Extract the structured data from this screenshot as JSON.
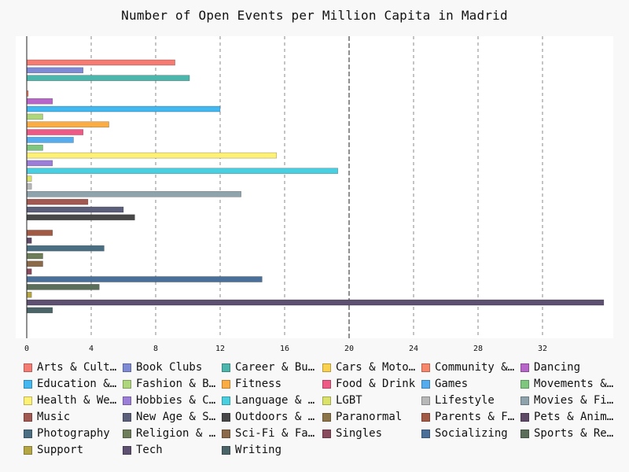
{
  "chart_data": {
    "type": "bar",
    "orientation": "horizontal",
    "title": "Number of Open Events per Million Capita in Madrid",
    "xlabel": "",
    "ylabel": "",
    "xlim": [
      0,
      36
    ],
    "x_ticks": [
      "0",
      "4",
      "8",
      "12",
      "16",
      "20",
      "24",
      "28",
      "32"
    ],
    "major_gridline_at": 20,
    "grid": "vertical dashed",
    "legend_position": "bottom",
    "series": [
      {
        "name": "Arts & Culture",
        "color": "#f57c73",
        "value": 9.2
      },
      {
        "name": "Book Clubs",
        "color": "#7f8ad4",
        "value": 3.5
      },
      {
        "name": "Career & Business",
        "color": "#4db6ac",
        "value": 10.1
      },
      {
        "name": "Cars & Motorcycles",
        "color": "#f9d14f",
        "value": 0
      },
      {
        "name": "Community & Environment",
        "color": "#f7866a",
        "value": 0.1
      },
      {
        "name": "Dancing",
        "color": "#b865c9",
        "value": 1.6
      },
      {
        "name": "Education & Learning",
        "color": "#43b7ef",
        "value": 12.0
      },
      {
        "name": "Fashion & Beauty",
        "color": "#aed67b",
        "value": 1.0
      },
      {
        "name": "Fitness",
        "color": "#fbad43",
        "value": 5.1
      },
      {
        "name": "Food & Drink",
        "color": "#ee5a85",
        "value": 3.5
      },
      {
        "name": "Games",
        "color": "#55acef",
        "value": 2.9
      },
      {
        "name": "Movements & Politics",
        "color": "#7fc67f",
        "value": 1.0
      },
      {
        "name": "Health & Wellbeing",
        "color": "#fff176",
        "value": 15.5
      },
      {
        "name": "Hobbies & Crafts",
        "color": "#9c7ed9",
        "value": 1.6
      },
      {
        "name": "Language & Ethnic Identity",
        "color": "#4acfe0",
        "value": 19.3
      },
      {
        "name": "LGBT",
        "color": "#dbe26a",
        "value": 0.3
      },
      {
        "name": "Lifestyle",
        "color": "#b8b8b8",
        "value": 0.3
      },
      {
        "name": "Movies & Film",
        "color": "#8fa3ad",
        "value": 13.3
      },
      {
        "name": "Music",
        "color": "#a25951",
        "value": 3.8
      },
      {
        "name": "New Age & Spirituality",
        "color": "#5c5f7a",
        "value": 6.0
      },
      {
        "name": "Outdoors & Adventure",
        "color": "#484848",
        "value": 6.7
      },
      {
        "name": "Paranormal",
        "color": "#8b7548",
        "value": 0
      },
      {
        "name": "Parents & Family",
        "color": "#a35a45",
        "value": 1.6
      },
      {
        "name": "Pets & Animals",
        "color": "#5e4a66",
        "value": 0.3
      },
      {
        "name": "Photography",
        "color": "#4a6e82",
        "value": 4.8
      },
      {
        "name": "Religion & Beliefs",
        "color": "#6e7e5a",
        "value": 1.0
      },
      {
        "name": "Sci-Fi & Fantasy",
        "color": "#8a6a48",
        "value": 1.0
      },
      {
        "name": "Singles",
        "color": "#8a4a5e",
        "value": 0.3
      },
      {
        "name": "Socializing",
        "color": "#4a7099",
        "value": 14.6
      },
      {
        "name": "Sports & Recreation",
        "color": "#5b6e5a",
        "value": 4.5
      },
      {
        "name": "Support",
        "color": "#b5a644",
        "value": 0.3
      },
      {
        "name": "Tech",
        "color": "#5d5070",
        "value": 35.8
      },
      {
        "name": "Writing",
        "color": "#4a6468",
        "value": 1.6
      }
    ]
  },
  "legend_labels": [
    "Arts & Cultu…",
    "Book Clubs",
    "Career & Bus…",
    "Cars & Motor…",
    "Community & …",
    "Dancing",
    "Education & …",
    "Fashion & Be…",
    "Fitness",
    "Food & Drink",
    "Games",
    "Movements & …",
    "Health & Wel…",
    "Hobbies & Cr…",
    "Language & E…",
    "LGBT",
    "Lifestyle",
    "Movies & Film",
    "Music",
    "New Age & Sp…",
    "Outdoors & A…",
    "Paranormal",
    "Parents & Fa…",
    "Pets & Anima…",
    "Photography",
    "Religion & B…",
    "Sci-Fi & Fan…",
    "Singles",
    "Socializing",
    "Sports & Rec…",
    "Support",
    "Tech",
    "Writing"
  ]
}
